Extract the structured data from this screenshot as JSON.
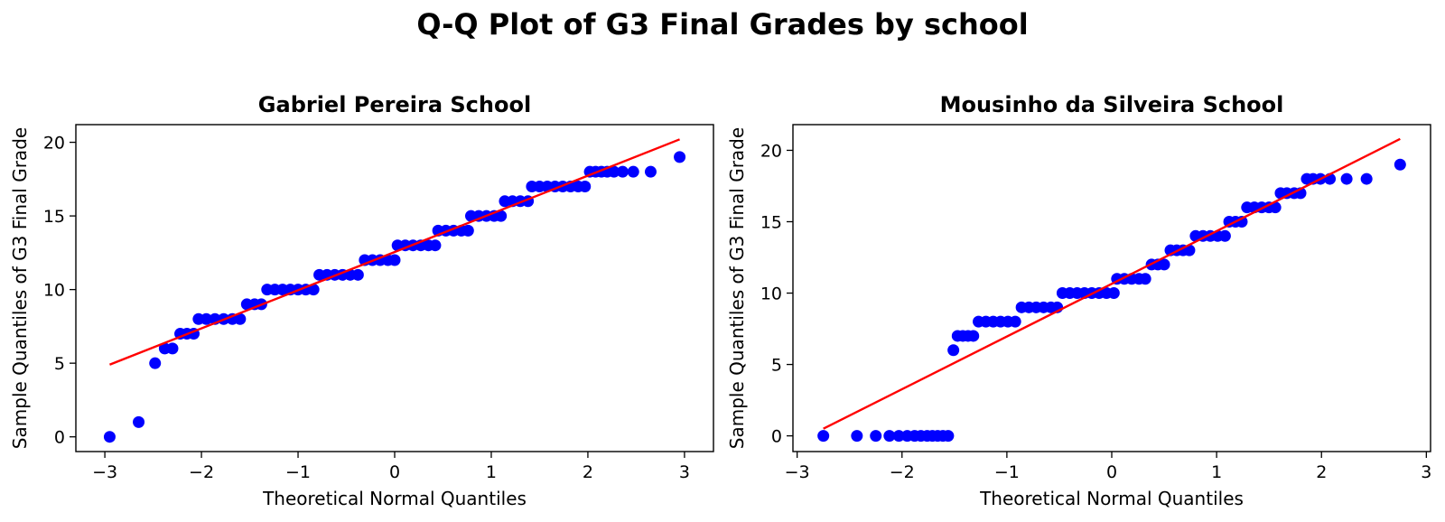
{
  "suptitle": "Q-Q Plot of G3 Final Grades by school",
  "colors": {
    "points": "#0000ff",
    "line": "#ff0000",
    "axes": "#000000"
  },
  "chart_data": [
    {
      "type": "scatter",
      "title": "Gabriel Pereira School",
      "xlabel": "Theoretical Normal Quantiles",
      "ylabel": "Sample Quantiles of G3 Final Grade",
      "xlim": [
        -3.3,
        3.3
      ],
      "ylim": [
        -1.0,
        21.2
      ],
      "xticks": [
        -3,
        -2,
        -1,
        0,
        1,
        2,
        3
      ],
      "xtick_labels": [
        "−3",
        "−2",
        "−1",
        "0",
        "1",
        "2",
        "3"
      ],
      "yticks": [
        0,
        5,
        10,
        15,
        20
      ],
      "ytick_labels": [
        "0",
        "5",
        "10",
        "15",
        "20"
      ],
      "grid": false,
      "fit_line": {
        "x": [
          -2.95,
          2.95
        ],
        "y": [
          4.9,
          20.2
        ]
      },
      "points": [
        [
          -2.95,
          0
        ],
        [
          -2.65,
          1
        ],
        [
          -2.48,
          5
        ],
        [
          -2.38,
          6
        ],
        [
          -2.3,
          6
        ],
        [
          -2.22,
          7
        ],
        [
          -2.15,
          7
        ],
        [
          -2.08,
          7
        ],
        [
          -2.03,
          8
        ],
        [
          -1.95,
          8
        ],
        [
          -1.86,
          8
        ],
        [
          -1.77,
          8
        ],
        [
          -1.68,
          8
        ],
        [
          -1.6,
          8
        ],
        [
          -1.53,
          9
        ],
        [
          -1.45,
          9
        ],
        [
          -1.38,
          9
        ],
        [
          -1.32,
          10
        ],
        [
          -1.24,
          10
        ],
        [
          -1.16,
          10
        ],
        [
          -1.08,
          10
        ],
        [
          -1.0,
          10
        ],
        [
          -0.92,
          10
        ],
        [
          -0.84,
          10
        ],
        [
          -0.78,
          11
        ],
        [
          -0.7,
          11
        ],
        [
          -0.62,
          11
        ],
        [
          -0.54,
          11
        ],
        [
          -0.46,
          11
        ],
        [
          -0.38,
          11
        ],
        [
          -0.31,
          12
        ],
        [
          -0.23,
          12
        ],
        [
          -0.15,
          12
        ],
        [
          -0.07,
          12
        ],
        [
          0.0,
          12
        ],
        [
          0.03,
          13
        ],
        [
          0.11,
          13
        ],
        [
          0.19,
          13
        ],
        [
          0.27,
          13
        ],
        [
          0.35,
          13
        ],
        [
          0.42,
          13
        ],
        [
          0.45,
          14
        ],
        [
          0.53,
          14
        ],
        [
          0.61,
          14
        ],
        [
          0.69,
          14
        ],
        [
          0.76,
          14
        ],
        [
          0.79,
          15
        ],
        [
          0.87,
          15
        ],
        [
          0.95,
          15
        ],
        [
          1.03,
          15
        ],
        [
          1.1,
          15
        ],
        [
          1.14,
          16
        ],
        [
          1.22,
          16
        ],
        [
          1.3,
          16
        ],
        [
          1.38,
          16
        ],
        [
          1.42,
          17
        ],
        [
          1.5,
          17
        ],
        [
          1.58,
          17
        ],
        [
          1.66,
          17
        ],
        [
          1.74,
          17
        ],
        [
          1.82,
          17
        ],
        [
          1.9,
          17
        ],
        [
          1.97,
          17
        ],
        [
          2.02,
          18
        ],
        [
          2.08,
          18
        ],
        [
          2.14,
          18
        ],
        [
          2.2,
          18
        ],
        [
          2.27,
          18
        ],
        [
          2.36,
          18
        ],
        [
          2.47,
          18
        ],
        [
          2.65,
          18
        ],
        [
          2.95,
          19
        ]
      ]
    },
    {
      "type": "scatter",
      "title": "Mousinho da Silveira School",
      "xlabel": "Theoretical Normal Quantiles",
      "ylabel": "Sample Quantiles of G3 Final Grade",
      "xlim": [
        -3.04,
        3.04
      ],
      "ylim": [
        -1.1,
        21.8
      ],
      "xticks": [
        -3,
        -2,
        -1,
        0,
        1,
        2,
        3
      ],
      "xtick_labels": [
        "−3",
        "−2",
        "−1",
        "0",
        "1",
        "2",
        "3"
      ],
      "yticks": [
        0,
        5,
        10,
        15,
        20
      ],
      "ytick_labels": [
        "0",
        "5",
        "10",
        "15",
        "20"
      ],
      "grid": false,
      "fit_line": {
        "x": [
          -2.75,
          2.75
        ],
        "y": [
          0.5,
          20.8
        ]
      },
      "points": [
        [
          -2.75,
          0
        ],
        [
          -2.43,
          0
        ],
        [
          -2.25,
          0
        ],
        [
          -2.12,
          0
        ],
        [
          -2.03,
          0
        ],
        [
          -1.95,
          0
        ],
        [
          -1.88,
          0
        ],
        [
          -1.82,
          0
        ],
        [
          -1.76,
          0
        ],
        [
          -1.71,
          0
        ],
        [
          -1.66,
          0
        ],
        [
          -1.61,
          0
        ],
        [
          -1.56,
          0
        ],
        [
          -1.51,
          6
        ],
        [
          -1.47,
          7
        ],
        [
          -1.42,
          7
        ],
        [
          -1.37,
          7
        ],
        [
          -1.32,
          7
        ],
        [
          -1.27,
          8
        ],
        [
          -1.2,
          8
        ],
        [
          -1.13,
          8
        ],
        [
          -1.06,
          8
        ],
        [
          -0.99,
          8
        ],
        [
          -0.92,
          8
        ],
        [
          -0.86,
          9
        ],
        [
          -0.79,
          9
        ],
        [
          -0.72,
          9
        ],
        [
          -0.65,
          9
        ],
        [
          -0.58,
          9
        ],
        [
          -0.52,
          9
        ],
        [
          -0.47,
          10
        ],
        [
          -0.4,
          10
        ],
        [
          -0.33,
          10
        ],
        [
          -0.26,
          10
        ],
        [
          -0.19,
          10
        ],
        [
          -0.12,
          10
        ],
        [
          -0.05,
          10
        ],
        [
          0.02,
          10
        ],
        [
          0.05,
          11
        ],
        [
          0.12,
          11
        ],
        [
          0.19,
          11
        ],
        [
          0.26,
          11
        ],
        [
          0.32,
          11
        ],
        [
          0.38,
          12
        ],
        [
          0.44,
          12
        ],
        [
          0.5,
          12
        ],
        [
          0.56,
          13
        ],
        [
          0.62,
          13
        ],
        [
          0.68,
          13
        ],
        [
          0.74,
          13
        ],
        [
          0.8,
          14
        ],
        [
          0.87,
          14
        ],
        [
          0.94,
          14
        ],
        [
          1.01,
          14
        ],
        [
          1.08,
          14
        ],
        [
          1.12,
          15
        ],
        [
          1.18,
          15
        ],
        [
          1.24,
          15
        ],
        [
          1.29,
          16
        ],
        [
          1.36,
          16
        ],
        [
          1.43,
          16
        ],
        [
          1.5,
          16
        ],
        [
          1.56,
          16
        ],
        [
          1.61,
          17
        ],
        [
          1.67,
          17
        ],
        [
          1.74,
          17
        ],
        [
          1.8,
          17
        ],
        [
          1.86,
          18
        ],
        [
          1.92,
          18
        ],
        [
          1.99,
          18
        ],
        [
          2.08,
          18
        ],
        [
          2.24,
          18
        ],
        [
          2.43,
          18
        ],
        [
          2.75,
          19
        ]
      ]
    }
  ]
}
